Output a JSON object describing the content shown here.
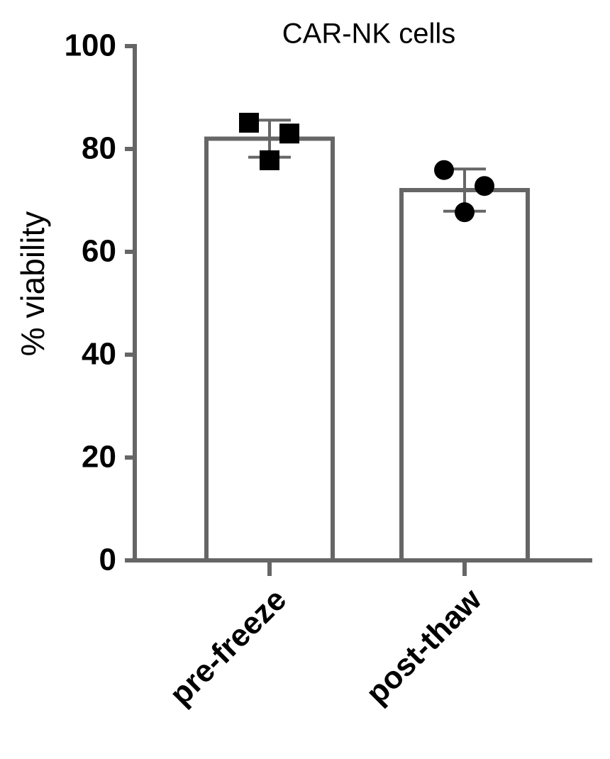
{
  "chart_data": {
    "type": "bar",
    "title": "CAR-NK cells",
    "y_label": "% viability",
    "categories": [
      "pre-freeze",
      "post-thaw"
    ],
    "values": [
      82,
      72
    ],
    "errors": [
      3.6,
      4.1
    ],
    "points": [
      [
        85.1,
        83.0,
        77.8
      ],
      [
        75.9,
        72.8,
        67.7
      ]
    ],
    "markers": [
      "square",
      "circle"
    ],
    "bar_fill": "#ffffff",
    "bar_stroke": "#666666",
    "point_color": "#000000",
    "ylim": [
      0,
      100
    ],
    "yticks": [
      0,
      20,
      40,
      60,
      80,
      100
    ]
  }
}
